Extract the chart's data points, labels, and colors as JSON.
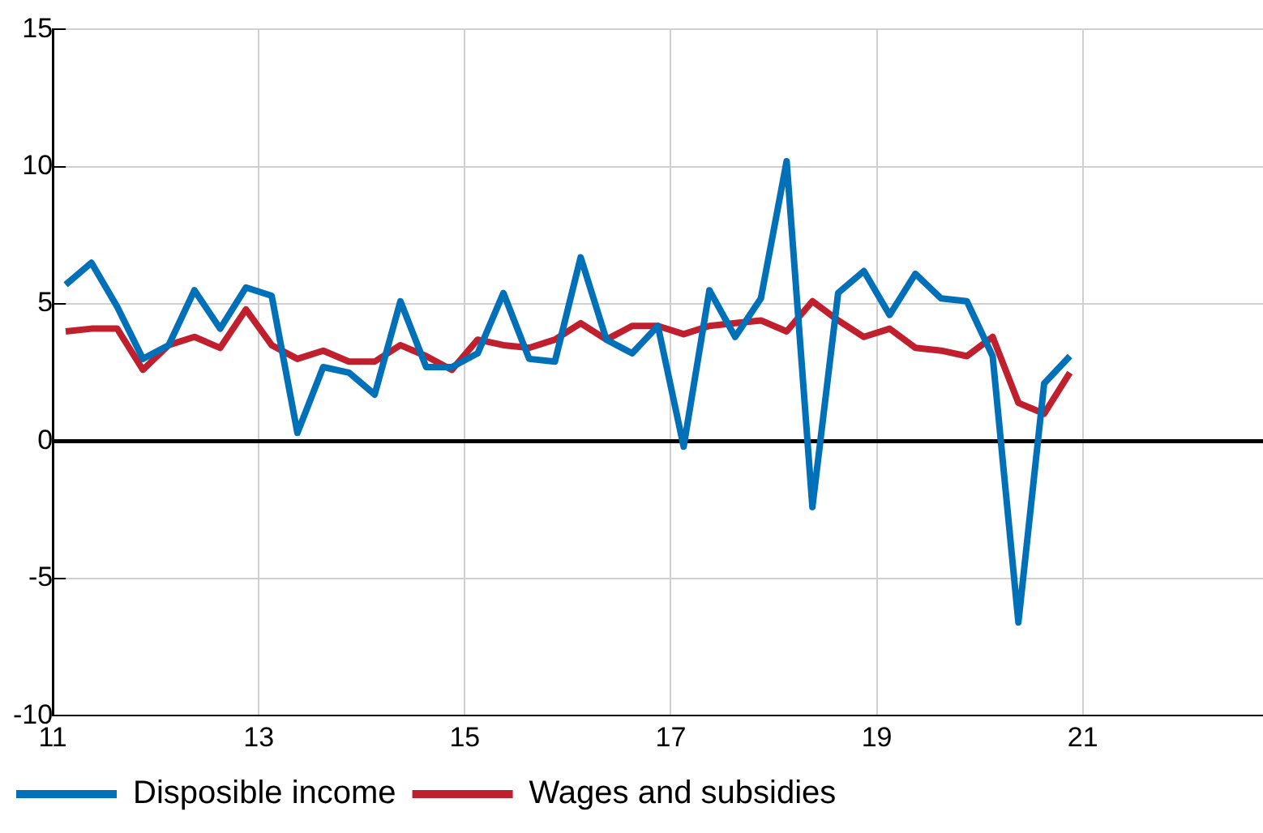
{
  "chart_data": {
    "type": "line",
    "x": [
      11.125,
      11.375,
      11.625,
      11.875,
      12.125,
      12.375,
      12.625,
      12.875,
      13.125,
      13.375,
      13.625,
      13.875,
      14.125,
      14.375,
      14.625,
      14.875,
      15.125,
      15.375,
      15.625,
      15.875,
      16.125,
      16.375,
      16.625,
      16.875,
      17.125,
      17.375,
      17.625,
      17.875,
      18.125,
      18.375,
      18.625,
      18.875,
      19.125,
      19.375,
      19.625,
      19.875,
      20.125,
      20.375,
      20.625,
      20.875
    ],
    "series": [
      {
        "name": "Disposible income",
        "color": "#0070b8",
        "values": [
          5.7,
          6.5,
          4.9,
          3.0,
          3.5,
          5.5,
          4.1,
          5.6,
          5.3,
          0.3,
          2.7,
          2.5,
          1.7,
          5.1,
          2.7,
          2.7,
          3.2,
          5.4,
          3.0,
          2.9,
          6.7,
          3.7,
          3.2,
          4.2,
          -0.2,
          5.5,
          3.8,
          5.2,
          10.2,
          -2.4,
          5.4,
          6.2,
          4.6,
          6.1,
          5.2,
          5.1,
          3.1,
          -6.6,
          2.1,
          3.1
        ]
      },
      {
        "name": "Wages and subsidies",
        "color": "#c0202e",
        "values": [
          4.0,
          4.1,
          4.1,
          2.6,
          3.5,
          3.8,
          3.4,
          4.8,
          3.5,
          3.0,
          3.3,
          2.9,
          2.9,
          3.5,
          3.1,
          2.6,
          3.7,
          3.5,
          3.4,
          3.7,
          4.3,
          3.7,
          4.2,
          4.2,
          3.9,
          4.2,
          4.3,
          4.4,
          4.0,
          5.1,
          4.4,
          3.8,
          4.1,
          3.4,
          3.3,
          3.1,
          3.8,
          1.4,
          1.0,
          2.5
        ]
      }
    ],
    "xlim": [
      11,
      22.75
    ],
    "xticks": [
      11,
      13,
      15,
      17,
      19,
      21
    ],
    "ylim": [
      -10,
      15
    ],
    "yticks": [
      -10,
      -5,
      0,
      5,
      10,
      15
    ],
    "ref_lines": [
      {
        "axis": "y",
        "value": 0,
        "color": "#000000"
      }
    ],
    "grid": true,
    "legend": "bottom left",
    "marker": "none",
    "line_style": "solid"
  }
}
